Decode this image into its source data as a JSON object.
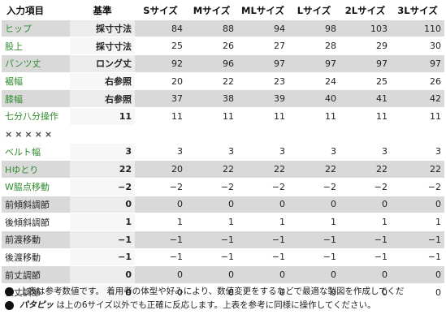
{
  "headers": [
    "入力項目",
    "基準",
    "Sサイズ",
    "Mサイズ",
    "MLサイズ",
    "Lサイズ",
    "2Lサイズ",
    "3Lサイズ"
  ],
  "rows": [
    {
      "label": "ヒップ",
      "label_color": "#2f8b2f",
      "standard": "採寸寸法",
      "values": [
        "84",
        "88",
        "94",
        "98",
        "103",
        "110"
      ]
    },
    {
      "label": "股上",
      "label_color": "#2f8b2f",
      "standard": "採寸寸法",
      "values": [
        "25",
        "26",
        "27",
        "28",
        "29",
        "30"
      ]
    },
    {
      "label": "パンツ丈",
      "label_color": "#2f8b2f",
      "standard": "ロング丈",
      "values": [
        "92",
        "96",
        "97",
        "97",
        "97",
        "97"
      ]
    },
    {
      "label": "裾幅",
      "label_color": "#2f8b2f",
      "standard": "右参照",
      "values": [
        "20",
        "22",
        "23",
        "24",
        "25",
        "26"
      ]
    },
    {
      "label": "膝幅",
      "label_color": "#2f8b2f",
      "standard": "右参照",
      "values": [
        "37",
        "38",
        "39",
        "40",
        "41",
        "42"
      ]
    },
    {
      "label": "七分八分操作",
      "label_color": "#2f8b2f",
      "standard": "11",
      "values": [
        "11",
        "11",
        "11",
        "11",
        "11",
        "11"
      ]
    },
    {
      "label": "×××××",
      "separator": true,
      "standard": "",
      "values": [
        "",
        "",
        "",
        "",
        "",
        ""
      ]
    },
    {
      "label": "ベルト幅",
      "label_color": "#2f8b2f",
      "standard": "3",
      "values": [
        "3",
        "3",
        "3",
        "3",
        "3",
        "3"
      ]
    },
    {
      "label": "Hゆとり",
      "label_color": "#2f8b2f",
      "standard": "22",
      "values": [
        "20",
        "22",
        "22",
        "22",
        "22",
        "22"
      ]
    },
    {
      "label": "W脇点移動",
      "label_color": "#2f8b2f",
      "standard": "−2",
      "values": [
        "−2",
        "−2",
        "−2",
        "−2",
        "−2",
        "−2"
      ]
    },
    {
      "label": "前傾斜調節",
      "label_color": "#222222",
      "standard": "0",
      "values": [
        "0",
        "0",
        "0",
        "0",
        "0",
        "0"
      ]
    },
    {
      "label": "後傾斜調節",
      "label_color": "#222222",
      "standard": "1",
      "values": [
        "1",
        "1",
        "1",
        "1",
        "1",
        "1"
      ]
    },
    {
      "label": "前渡移動",
      "label_color": "#222222",
      "standard": "−1",
      "values": [
        "−1",
        "−1",
        "−1",
        "−1",
        "−1",
        "−1"
      ]
    },
    {
      "label": "後渡移動",
      "label_color": "#222222",
      "standard": "−1",
      "values": [
        "−1",
        "−1",
        "−1",
        "−1",
        "−1",
        "−1"
      ]
    },
    {
      "label": "前丈調節",
      "label_color": "#222222",
      "standard": "0",
      "values": [
        "0",
        "0",
        "0",
        "0",
        "0",
        "0"
      ]
    },
    {
      "label": "後丈調節",
      "label_color": "#222222",
      "standard": "0",
      "values": [
        "0",
        "0",
        "0",
        "0",
        "0",
        "0"
      ]
    }
  ],
  "notes": [
    {
      "prefix": "",
      "text": "上表は参考数値です。 着用者の体型や好みにより、数値変更をするなどで最適な製図を作成してくだ"
    },
    {
      "prefix": "パタピッ",
      "text": "は上の6サイズ以外でも正確に反応します。上表を参考に同様に操作してください。"
    }
  ]
}
